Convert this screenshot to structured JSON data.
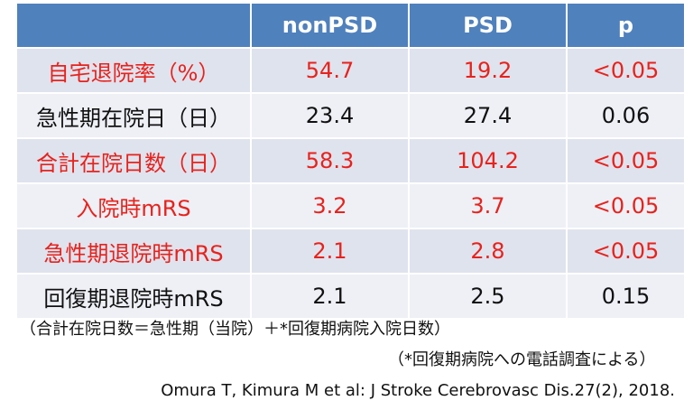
{
  "table": {
    "headers": [
      "",
      "nonPSD",
      "PSD",
      "p"
    ],
    "rows": [
      {
        "label": "自宅退院率（%）",
        "nonPSD": "54.7",
        "PSD": "19.2",
        "p": "<0.05",
        "highlight": true
      },
      {
        "label": "急性期在院日（日）",
        "nonPSD": "23.4",
        "PSD": "27.4",
        "p": "0.06",
        "highlight": false
      },
      {
        "label": "合計在院日数（日）",
        "nonPSD": "58.3",
        "PSD": "104.2",
        "p": "<0.05",
        "highlight": true
      },
      {
        "label": "入院時mRS",
        "nonPSD": "3.2",
        "PSD": "3.7",
        "p": "<0.05",
        "highlight": true
      },
      {
        "label": "急性期退院時mRS",
        "nonPSD": "2.1",
        "PSD": "2.8",
        "p": "<0.05",
        "highlight": true
      },
      {
        "label": "回復期退院時mRS",
        "nonPSD": "2.1",
        "PSD": "2.5",
        "p": "0.15",
        "highlight": false
      }
    ]
  },
  "notes": {
    "formula": "（合計在院日数＝急性期（当院）＋*回復期病院入院日数）",
    "survey": "（*回復期病院への電話調査による）",
    "citation": "Omura T, Kimura M et al: J Stroke Cerebrovasc Dis.27(2), 2018."
  },
  "colors": {
    "header_bg": "#4f81bd",
    "row_shade": "#dfe3ee",
    "row_plain": "#eef0f6",
    "highlight_text": "#e8221c"
  }
}
